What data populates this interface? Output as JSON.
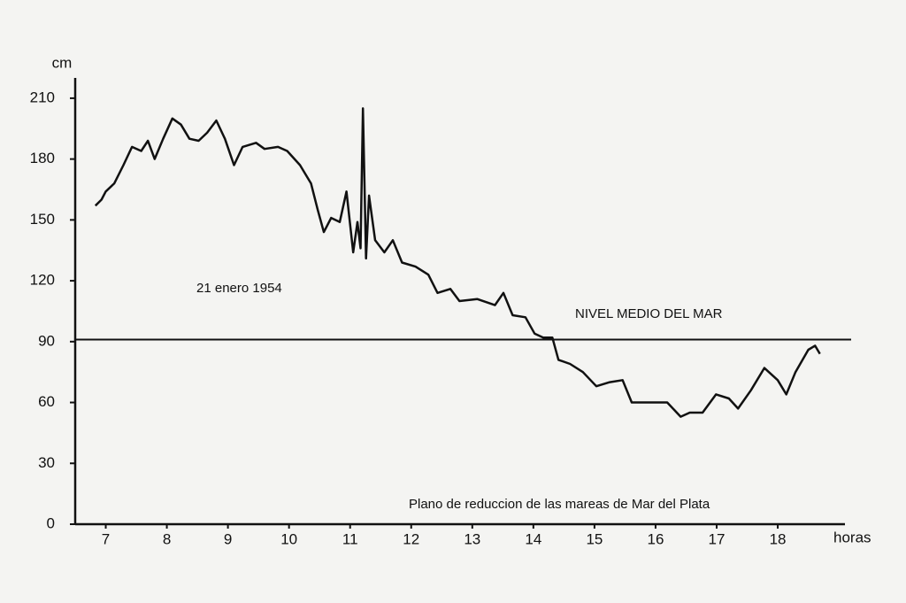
{
  "chart_data": {
    "type": "line",
    "y_label": "cm",
    "x_label": "horas",
    "annotations": [
      "21 enero 1954",
      "NIVEL MEDIO DEL MAR",
      "Plano de reduccion de las mareas de Mar del Plata"
    ],
    "reference_line": 91,
    "x": [
      6.83,
      6.93,
      7.0,
      7.14,
      7.29,
      7.43,
      7.58,
      7.69,
      7.8,
      7.94,
      8.09,
      8.23,
      8.37,
      8.52,
      8.66,
      8.81,
      8.95,
      9.1,
      9.24,
      9.46,
      9.6,
      9.82,
      9.97,
      10.18,
      10.36,
      10.47,
      10.57,
      10.69,
      10.83,
      10.94,
      11.05,
      11.12,
      11.17,
      11.21,
      11.26,
      11.31,
      11.41,
      11.56,
      11.7,
      11.85,
      12.07,
      12.28,
      12.43,
      12.64,
      12.79,
      13.08,
      13.37,
      13.51,
      13.66,
      13.87,
      14.02,
      14.16,
      14.31,
      14.41,
      14.6,
      14.81,
      15.03,
      15.25,
      15.46,
      15.61,
      15.9,
      16.19,
      16.41,
      16.56,
      16.77,
      16.99,
      17.2,
      17.35,
      17.56,
      17.78,
      18.0,
      18.14,
      18.29,
      18.5,
      18.61,
      18.69
    ],
    "series": [
      {
        "color": "#111111",
        "values": [
          157,
          160,
          164,
          168,
          177,
          186,
          184,
          189,
          180,
          190,
          200,
          197,
          190,
          189,
          193,
          199,
          190,
          177,
          186,
          188,
          185,
          186,
          184,
          177,
          168,
          155,
          144,
          151,
          149,
          164,
          134,
          149,
          136,
          205,
          131,
          162,
          140,
          134,
          140,
          129,
          127,
          123,
          114,
          116,
          110,
          111,
          108,
          114,
          103,
          102,
          94,
          92,
          92,
          81,
          79,
          75,
          68,
          70,
          71,
          60,
          60,
          60,
          53,
          55,
          55,
          64,
          62,
          57,
          66,
          77,
          71,
          64,
          75,
          86,
          88,
          84
        ]
      }
    ],
    "xlim": [
      6.5,
      19.1
    ],
    "ylim": [
      0,
      220
    ],
    "xticks": [
      7,
      8,
      9,
      10,
      11,
      12,
      13,
      14,
      15,
      16,
      17,
      18
    ],
    "yticks": [
      0,
      30,
      60,
      90,
      120,
      150,
      180,
      210
    ]
  }
}
